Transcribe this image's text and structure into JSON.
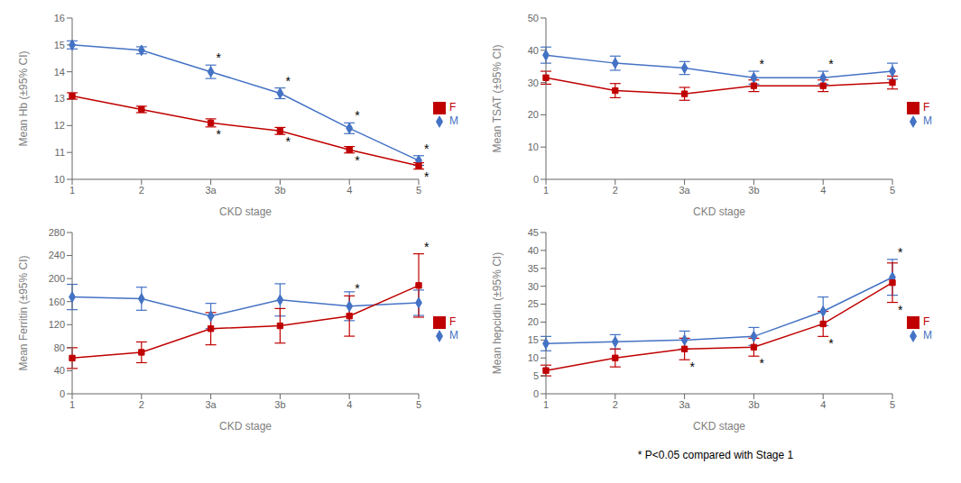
{
  "chart_data": [
    {
      "type": "line",
      "xlabel": "CKD stage",
      "ylabel": "Mean Hb (±95% CI)",
      "categories": [
        "1",
        "2",
        "3a",
        "3b",
        "4",
        "5"
      ],
      "ylim": [
        10,
        16
      ],
      "yticks": [
        10,
        11,
        12,
        13,
        14,
        15,
        16
      ],
      "grid": false,
      "legend": "right",
      "series": [
        {
          "name": "M",
          "color": "#4472c4",
          "marker": "diamond",
          "values": [
            15.0,
            14.8,
            14.0,
            13.2,
            11.9,
            10.7
          ],
          "errors": [
            0.15,
            0.13,
            0.25,
            0.2,
            0.2,
            0.18
          ]
        },
        {
          "name": "F",
          "color": "#c00000",
          "marker": "square",
          "values": [
            13.1,
            12.6,
            12.1,
            11.8,
            11.1,
            10.5
          ],
          "errors": [
            0.12,
            0.12,
            0.15,
            0.13,
            0.12,
            0.12
          ]
        }
      ],
      "annotations": [
        {
          "text": "*",
          "category": "3a",
          "series": "M",
          "position": "above"
        },
        {
          "text": "*",
          "category": "3b",
          "series": "M",
          "position": "above"
        },
        {
          "text": "*",
          "category": "4",
          "series": "M",
          "position": "above"
        },
        {
          "text": "*",
          "category": "5",
          "series": "M",
          "position": "above"
        },
        {
          "text": "*",
          "category": "3a",
          "series": "F",
          "position": "below"
        },
        {
          "text": "*",
          "category": "3b",
          "series": "F",
          "position": "below"
        },
        {
          "text": "*",
          "category": "4",
          "series": "F",
          "position": "below"
        },
        {
          "text": "*",
          "category": "5",
          "series": "F",
          "position": "below"
        }
      ]
    },
    {
      "type": "line",
      "xlabel": "CKD stage",
      "ylabel": "Mean TSAT (±95% CI)",
      "categories": [
        "1",
        "2",
        "3a",
        "3b",
        "4",
        "5"
      ],
      "ylim": [
        0,
        50
      ],
      "yticks": [
        0,
        10,
        20,
        30,
        40,
        50
      ],
      "grid": false,
      "legend": "right",
      "series": [
        {
          "name": "M",
          "color": "#4472c4",
          "marker": "diamond",
          "values": [
            38.5,
            36.0,
            34.5,
            31.5,
            31.5,
            33.5
          ],
          "errors": [
            2.5,
            2.2,
            2.0,
            2.0,
            2.0,
            2.5
          ]
        },
        {
          "name": "F",
          "color": "#c00000",
          "marker": "square",
          "values": [
            31.5,
            27.5,
            26.5,
            29.0,
            29.0,
            30.0
          ],
          "errors": [
            2.0,
            2.2,
            2.0,
            1.8,
            1.8,
            2.0
          ]
        }
      ],
      "annotations": [
        {
          "text": "*",
          "category": "3b",
          "series": "M",
          "position": "above"
        },
        {
          "text": "*",
          "category": "4",
          "series": "M",
          "position": "above"
        }
      ]
    },
    {
      "type": "line",
      "xlabel": "CKD stage",
      "ylabel": "Mean Ferritin (±95% CI)",
      "categories": [
        "1",
        "2",
        "3a",
        "3b",
        "4",
        "5"
      ],
      "ylim": [
        0,
        280
      ],
      "yticks": [
        0,
        40,
        80,
        120,
        160,
        200,
        240,
        280
      ],
      "grid": false,
      "legend": "right",
      "series": [
        {
          "name": "M",
          "color": "#4472c4",
          "marker": "diamond",
          "values": [
            168,
            165,
            135,
            163,
            152,
            158
          ],
          "errors": [
            22,
            20,
            22,
            28,
            25,
            22
          ]
        },
        {
          "name": "F",
          "color": "#c00000",
          "marker": "square",
          "values": [
            62,
            72,
            113,
            118,
            135,
            188
          ],
          "errors": [
            18,
            18,
            28,
            30,
            35,
            55
          ]
        }
      ],
      "annotations": [
        {
          "text": "*",
          "category": "4",
          "series": "F",
          "position": "above"
        },
        {
          "text": "*",
          "category": "5",
          "series": "F",
          "position": "above"
        }
      ]
    },
    {
      "type": "line",
      "xlabel": "CKD stage",
      "ylabel": "Mean hepcidin (±95% CI)",
      "categories": [
        "1",
        "2",
        "3a",
        "3b",
        "4",
        "5"
      ],
      "ylim": [
        0,
        45
      ],
      "yticks": [
        0,
        5,
        10,
        15,
        20,
        25,
        30,
        35,
        40,
        45
      ],
      "grid": false,
      "legend": "right",
      "series": [
        {
          "name": "M",
          "color": "#4472c4",
          "marker": "diamond",
          "values": [
            14.0,
            14.5,
            15.0,
            16.0,
            23.0,
            32.5
          ],
          "errors": [
            2.0,
            2.0,
            2.5,
            2.5,
            4.0,
            5.0
          ]
        },
        {
          "name": "F",
          "color": "#c00000",
          "marker": "square",
          "values": [
            6.5,
            10.0,
            12.5,
            13.0,
            19.5,
            31.0
          ],
          "errors": [
            1.5,
            2.5,
            3.0,
            2.5,
            3.5,
            5.5
          ]
        }
      ],
      "annotations": [
        {
          "text": "*",
          "category": "5",
          "series": "M",
          "position": "above"
        },
        {
          "text": "*",
          "category": "3a",
          "series": "F",
          "position": "below"
        },
        {
          "text": "*",
          "category": "3b",
          "series": "F",
          "position": "below"
        },
        {
          "text": "*",
          "category": "4",
          "series": "F",
          "position": "below"
        },
        {
          "text": "*",
          "category": "5",
          "series": "F",
          "position": "below"
        }
      ]
    }
  ],
  "footnote": "* P<0.05 compared with Stage 1"
}
